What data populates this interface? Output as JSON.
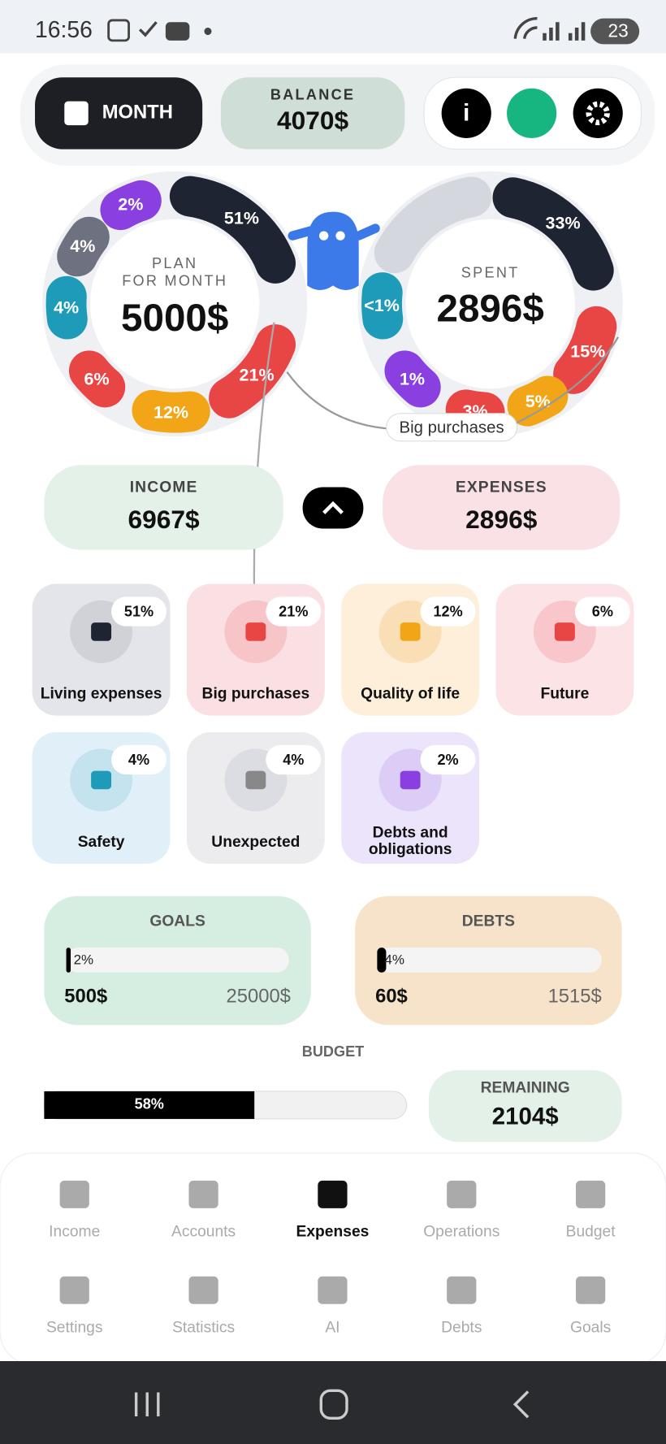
{
  "status_bar": {
    "time": "16:56",
    "battery": "23"
  },
  "header": {
    "period": "MONTH",
    "balance_label": "BALANCE",
    "balance": "4070$"
  },
  "plan": {
    "label_line1": "PLAN",
    "label_line2": "FOR MONTH",
    "amount": "5000$",
    "segments": [
      "51%",
      "21%",
      "12%",
      "6%",
      "4%",
      "4%",
      "2%"
    ]
  },
  "spent": {
    "label": "SPENT",
    "amount": "2896$",
    "segments": [
      "33%",
      "15%",
      "5%",
      "3%",
      "1%",
      "<1%"
    ],
    "callout": "Big purchases"
  },
  "income": {
    "label": "INCOME",
    "amount": "6967$"
  },
  "expenses": {
    "label": "EXPENSES",
    "amount": "2896$"
  },
  "categories": [
    {
      "name": "Living expenses",
      "percent": "51%"
    },
    {
      "name": "Big purchases",
      "percent": "21%"
    },
    {
      "name": "Quality of life",
      "percent": "12%"
    },
    {
      "name": "Future",
      "percent": "6%"
    },
    {
      "name": "Safety",
      "percent": "4%"
    },
    {
      "name": "Unexpected",
      "percent": "4%"
    },
    {
      "name": "Debts and obligations",
      "percent": "2%"
    }
  ],
  "goals": {
    "title": "GOALS",
    "progress": {
      "value": 2,
      "label": "2%"
    },
    "current": "500$",
    "target": "25000$"
  },
  "debts": {
    "title": "DEBTS",
    "progress": {
      "value": 4,
      "label": "4%"
    },
    "current": "60$",
    "target": "1515$"
  },
  "budget": {
    "title": "BUDGET",
    "progress": {
      "value": 58,
      "label": "58%"
    },
    "remaining_label": "REMAINING",
    "remaining": "2104$"
  },
  "nav": [
    "Income",
    "Accounts",
    "Expenses",
    "Operations",
    "Budget",
    "Settings",
    "Statistics",
    "AI",
    "Debts",
    "Goals"
  ]
}
